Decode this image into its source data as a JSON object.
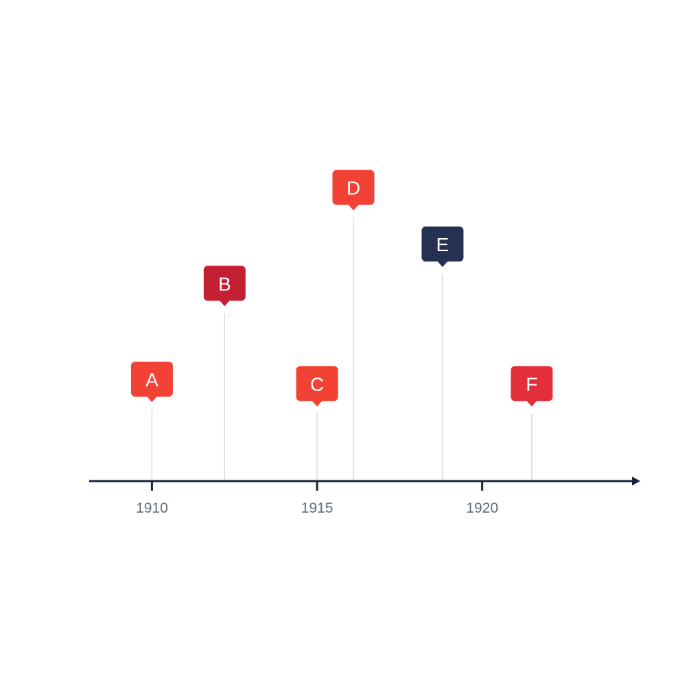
{
  "timeline": {
    "axis": {
      "start": 1908.1,
      "end": 1924.6,
      "color": "#18223a"
    },
    "ticks": [
      {
        "year": 1910,
        "label": "1910"
      },
      {
        "year": 1915,
        "label": "1915"
      },
      {
        "year": 1920,
        "label": "1920"
      }
    ],
    "events": [
      {
        "id": "a",
        "label": "A",
        "year": 1910.0,
        "level": 1.0,
        "color": "#f24236"
      },
      {
        "id": "b",
        "label": "B",
        "year": 1912.2,
        "level": 2.1,
        "color": "#c32033"
      },
      {
        "id": "c",
        "label": "C",
        "year": 1915.0,
        "level": 0.95,
        "color": "#f24236"
      },
      {
        "id": "d",
        "label": "D",
        "year": 1916.1,
        "level": 3.2,
        "color": "#f24236"
      },
      {
        "id": "e",
        "label": "E",
        "year": 1918.8,
        "level": 2.55,
        "color": "#253150"
      },
      {
        "id": "f",
        "label": "F",
        "year": 1921.5,
        "level": 0.95,
        "color": "#e42e3a"
      }
    ],
    "stem_color": "#cfd2d6"
  }
}
